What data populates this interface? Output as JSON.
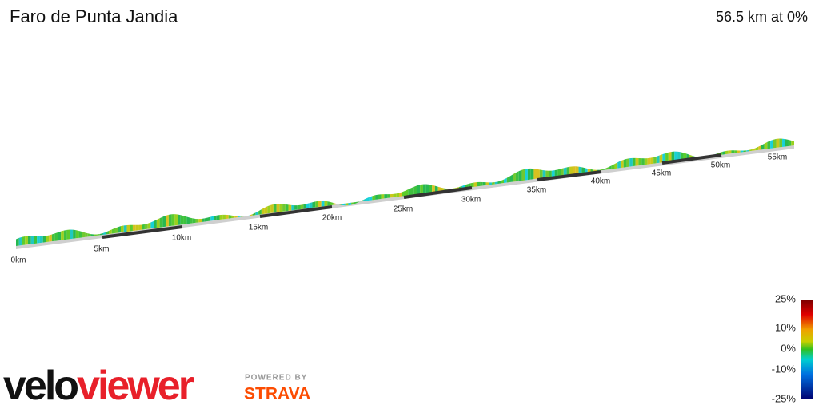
{
  "header": {
    "title": "Faro de Punta Jandia",
    "summary": "56.5 km at 0%"
  },
  "distance_labels": [
    "0km",
    "5km",
    "10km",
    "15km",
    "20km",
    "25km",
    "30km",
    "35km",
    "40km",
    "45km",
    "50km",
    "55km"
  ],
  "gradient_legend": [
    "25%",
    "10%",
    "0%",
    "-10%",
    "-25%"
  ],
  "branding": {
    "logo_velo": "velo",
    "logo_viewer": "viewer",
    "powered_by": "POWERED BY",
    "strava": "STRAVA"
  }
}
